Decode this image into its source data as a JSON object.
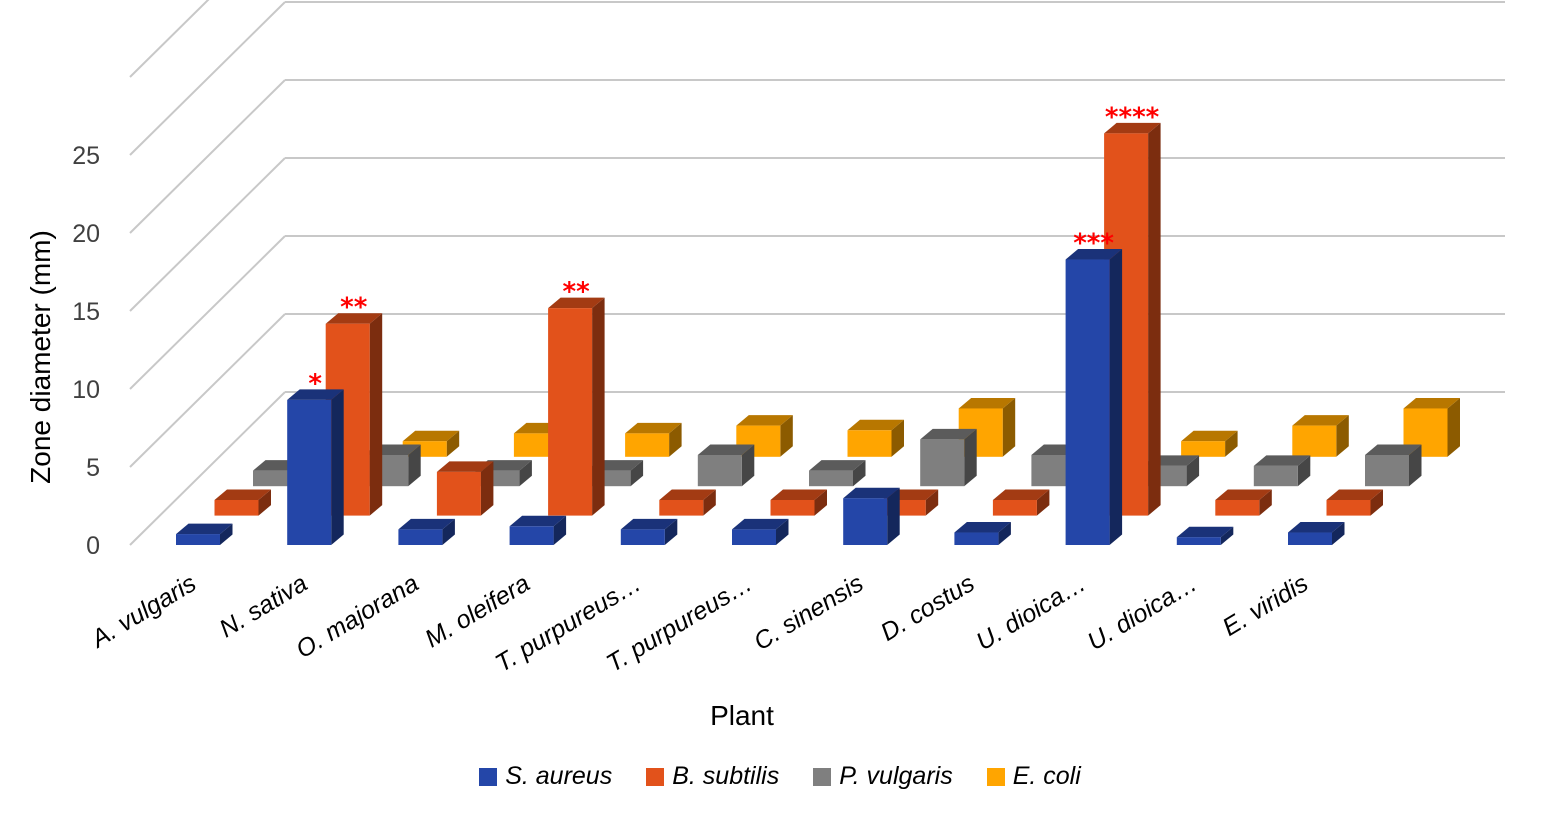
{
  "chart_data": {
    "type": "bar",
    "subtype": "3d-clustered-depth",
    "xlabel": "Plant",
    "ylabel": "Zone diameter (mm)",
    "ylim": [
      0,
      30
    ],
    "yticks": [
      0,
      5,
      10,
      15,
      20,
      25
    ],
    "grid": true,
    "legend_position": "bottom",
    "categories": [
      "A. vulgaris",
      "N. sativa",
      "O. majorana",
      "M. oleifera",
      "T. purpureus…",
      "T. purpureus…",
      "C. sinensis",
      "D. costus",
      "U. dioica…",
      "U. dioica…",
      "E. viridis"
    ],
    "series": [
      {
        "name": "S. aureus",
        "color": "#2446A8",
        "values": [
          0.7,
          9.3,
          1.0,
          1.2,
          1.0,
          1.0,
          3.0,
          0.8,
          18.3,
          0.5,
          0.8
        ],
        "annotations": [
          "",
          "*",
          "",
          "",
          "",
          "",
          "",
          "",
          "***",
          "",
          ""
        ]
      },
      {
        "name": "B. subtilis",
        "color": "#E2521B",
        "values": [
          1.0,
          12.3,
          2.8,
          13.3,
          1.0,
          1.0,
          1.0,
          1.0,
          24.5,
          1.0,
          1.0
        ],
        "annotations": [
          "",
          "**",
          "",
          "**",
          "",
          "",
          "",
          "",
          "****",
          "",
          ""
        ]
      },
      {
        "name": "P. vulgaris",
        "color": "#7F7F7F",
        "values": [
          1.0,
          2.0,
          1.0,
          1.0,
          2.0,
          1.0,
          3.0,
          2.0,
          1.3,
          1.3,
          2.0
        ],
        "annotations": [
          "",
          "",
          "",
          "",
          "",
          "",
          "",
          "",
          "",
          "",
          ""
        ]
      },
      {
        "name": "E. coli",
        "color": "#FFA500",
        "values": [
          0.0,
          1.0,
          1.5,
          1.5,
          2.0,
          1.7,
          3.1,
          3.1,
          1.0,
          2.0,
          3.1
        ],
        "annotations": [
          "",
          "",
          "",
          "",
          "",
          "",
          "",
          "",
          "",
          "",
          ""
        ]
      }
    ]
  }
}
